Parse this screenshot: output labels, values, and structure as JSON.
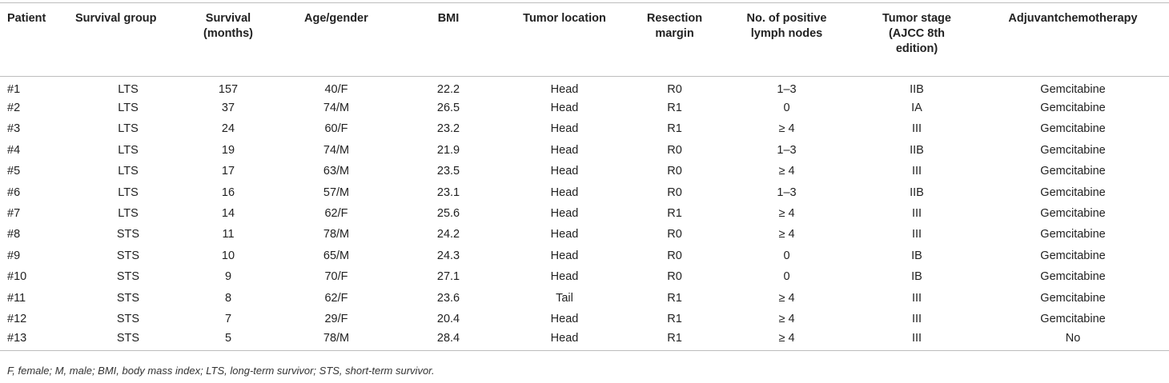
{
  "headers": [
    "Patient",
    "Survival group",
    "Survival\n(months)",
    "Age/gender",
    "BMI",
    "Tumor location",
    "Resection\nmargin",
    "No. of positive\nlymph nodes",
    "Tumor stage\n(AJCC 8th\nedition)",
    "Adjuvantchemotherapy"
  ],
  "rows": [
    {
      "patient": "#1",
      "group": "LTS",
      "survival": "157",
      "age_gender": "40/F",
      "bmi": "22.2",
      "location": "Head",
      "margin": "R0",
      "lymph": "1–3",
      "stage": "IIB",
      "chemo": "Gemcitabine"
    },
    {
      "patient": "#2",
      "group": "LTS",
      "survival": "37",
      "age_gender": "74/M",
      "bmi": "26.5",
      "location": "Head",
      "margin": "R1",
      "lymph": "0",
      "stage": "IA",
      "chemo": "Gemcitabine"
    },
    {
      "patient": "#3",
      "group": "LTS",
      "survival": "24",
      "age_gender": "60/F",
      "bmi": "23.2",
      "location": "Head",
      "margin": "R1",
      "lymph": "≥ 4",
      "stage": "III",
      "chemo": "Gemcitabine"
    },
    {
      "patient": "#4",
      "group": "LTS",
      "survival": "19",
      "age_gender": "74/M",
      "bmi": "21.9",
      "location": "Head",
      "margin": "R0",
      "lymph": "1–3",
      "stage": "IIB",
      "chemo": "Gemcitabine"
    },
    {
      "patient": "#5",
      "group": "LTS",
      "survival": "17",
      "age_gender": "63/M",
      "bmi": "23.5",
      "location": "Head",
      "margin": "R0",
      "lymph": "≥ 4",
      "stage": "III",
      "chemo": "Gemcitabine"
    },
    {
      "patient": "#6",
      "group": "LTS",
      "survival": "16",
      "age_gender": "57/M",
      "bmi": "23.1",
      "location": "Head",
      "margin": "R0",
      "lymph": "1–3",
      "stage": "IIB",
      "chemo": "Gemcitabine"
    },
    {
      "patient": "#7",
      "group": "LTS",
      "survival": "14",
      "age_gender": "62/F",
      "bmi": "25.6",
      "location": "Head",
      "margin": "R1",
      "lymph": "≥ 4",
      "stage": "III",
      "chemo": "Gemcitabine"
    },
    {
      "patient": "#8",
      "group": "STS",
      "survival": "11",
      "age_gender": "78/M",
      "bmi": "24.2",
      "location": "Head",
      "margin": "R0",
      "lymph": "≥ 4",
      "stage": "III",
      "chemo": "Gemcitabine"
    },
    {
      "patient": "#9",
      "group": "STS",
      "survival": "10",
      "age_gender": "65/M",
      "bmi": "24.3",
      "location": "Head",
      "margin": "R0",
      "lymph": "0",
      "stage": "IB",
      "chemo": "Gemcitabine"
    },
    {
      "patient": "#10",
      "group": "STS",
      "survival": "9",
      "age_gender": "70/F",
      "bmi": "27.1",
      "location": "Head",
      "margin": "R0",
      "lymph": "0",
      "stage": "IB",
      "chemo": "Gemcitabine"
    },
    {
      "patient": "#11",
      "group": "STS",
      "survival": "8",
      "age_gender": "62/F",
      "bmi": "23.6",
      "location": "Tail",
      "margin": "R1",
      "lymph": "≥ 4",
      "stage": "III",
      "chemo": "Gemcitabine"
    },
    {
      "patient": "#12",
      "group": "STS",
      "survival": "7",
      "age_gender": "29/F",
      "bmi": "20.4",
      "location": "Head",
      "margin": "R1",
      "lymph": "≥ 4",
      "stage": "III",
      "chemo": "Gemcitabine"
    },
    {
      "patient": "#13",
      "group": "STS",
      "survival": "5",
      "age_gender": "78/M",
      "bmi": "28.4",
      "location": "Head",
      "margin": "R1",
      "lymph": "≥ 4",
      "stage": "III",
      "chemo": "No"
    }
  ],
  "footnote": "F, female; M, male; BMI, body mass index; LTS, long-term survivor; STS, short-term survivor."
}
